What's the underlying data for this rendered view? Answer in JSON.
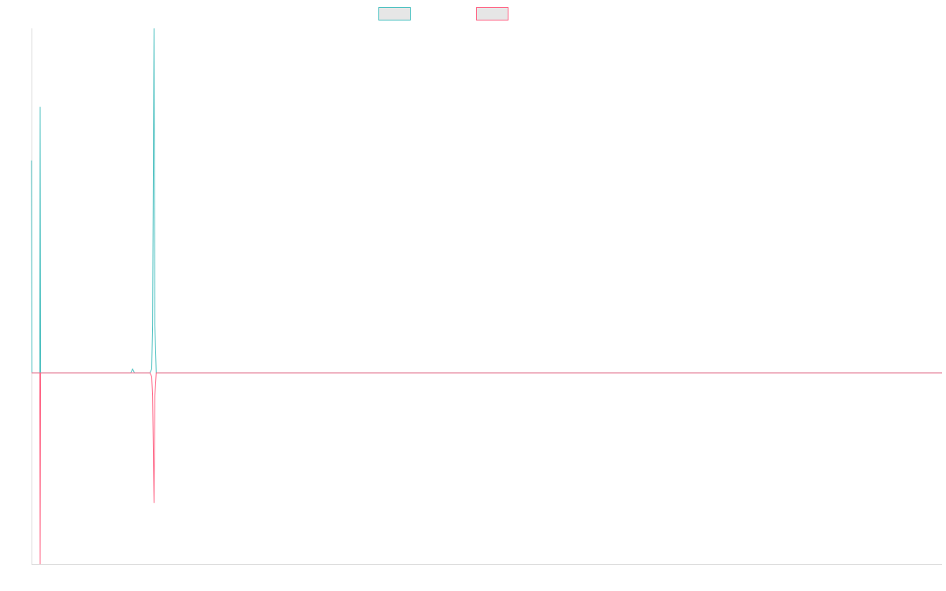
{
  "chart_data": {
    "type": "line",
    "title": "",
    "xlabel": "",
    "ylabel": "",
    "grid": false,
    "legend": "top-center",
    "x_range": [
      0,
      1000
    ],
    "y_range": [
      -1.0,
      1.8
    ],
    "series": [
      {
        "color": "#4bc0c0",
        "fill": "#e6e6e6",
        "points": [
          [
            0,
            1.11
          ],
          [
            0.5,
            0.0
          ],
          [
            9,
            0.0
          ],
          [
            9.5,
            1.39
          ],
          [
            10,
            0.0
          ],
          [
            109,
            0.0
          ],
          [
            111,
            0.02
          ],
          [
            113,
            0.0
          ],
          [
            130,
            0.0
          ],
          [
            132,
            0.02
          ],
          [
            133,
            0.25
          ],
          [
            134.5,
            1.8
          ],
          [
            135.5,
            0.25
          ],
          [
            137,
            0.0
          ],
          [
            1000,
            0.0
          ]
        ]
      },
      {
        "color": "#ff6384",
        "fill": "#e6e6e6",
        "points": [
          [
            0,
            0.0
          ],
          [
            9,
            0.0
          ],
          [
            9.5,
            -1.0
          ],
          [
            10,
            0.0
          ],
          [
            109,
            0.0
          ],
          [
            111,
            0.0
          ],
          [
            113,
            0.0
          ],
          [
            130,
            0.0
          ],
          [
            132,
            -0.02
          ],
          [
            133,
            -0.12
          ],
          [
            134.5,
            -0.68
          ],
          [
            135.5,
            -0.12
          ],
          [
            137,
            0.0
          ],
          [
            1000,
            0.0
          ]
        ]
      }
    ]
  }
}
